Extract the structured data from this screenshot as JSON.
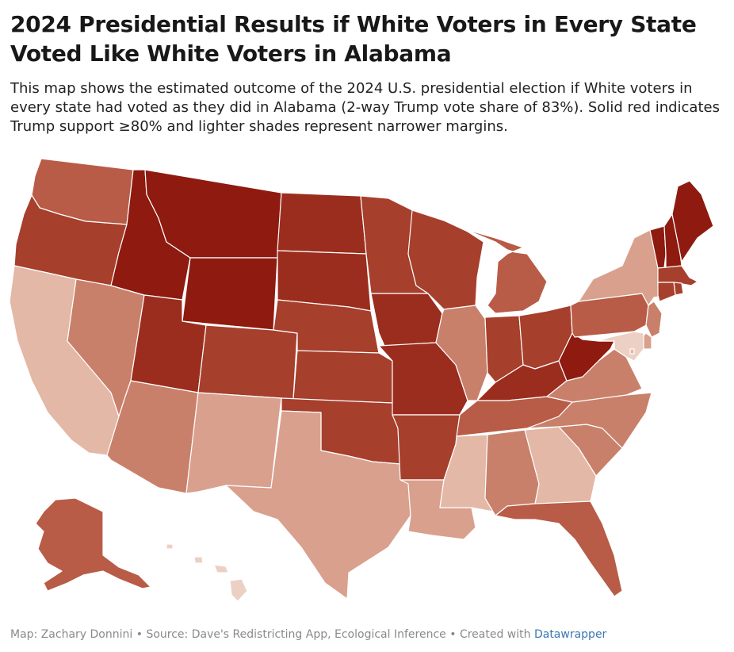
{
  "header": {
    "title_line1": "2024 Presidential Results if White Voters in Every State",
    "title_line2": "Voted Like White Voters in Alabama",
    "description": "This map shows the estimated outcome of the 2024 U.S. presidential election if White voters in every state had voted as they did in Alabama (2-way Trump vote share of 83%). Solid red indicates Trump support ≥80% and lighter shades represent narrower margins."
  },
  "footer": {
    "map_credit": "Map: Zachary Donnini",
    "separator": " • ",
    "source": "Source: Dave's Redistricting App, Ecological Inference",
    "created_with": "Created with ",
    "tool": "Datawrapper"
  },
  "colors": {
    "darkest": "#8e1a10",
    "dark": "#9b2d1e",
    "medium_dark": "#a63f2c",
    "medium": "#b85c47",
    "medium_light": "#c9806b",
    "light": "#d9a08e",
    "lighter": "#e3b8a7",
    "lightest": "#ecd0c3"
  },
  "map_data": {
    "states": [
      {
        "id": "WA",
        "shade": "medium"
      },
      {
        "id": "OR",
        "shade": "medium_dark"
      },
      {
        "id": "CA",
        "shade": "lighter"
      },
      {
        "id": "NV",
        "shade": "medium_light"
      },
      {
        "id": "ID",
        "shade": "darkest"
      },
      {
        "id": "MT",
        "shade": "darkest"
      },
      {
        "id": "WY",
        "shade": "darkest"
      },
      {
        "id": "UT",
        "shade": "dark"
      },
      {
        "id": "AZ",
        "shade": "medium_light"
      },
      {
        "id": "CO",
        "shade": "medium_dark"
      },
      {
        "id": "NM",
        "shade": "light"
      },
      {
        "id": "ND",
        "shade": "dark"
      },
      {
        "id": "SD",
        "shade": "dark"
      },
      {
        "id": "NE",
        "shade": "medium_dark"
      },
      {
        "id": "KS",
        "shade": "medium_dark"
      },
      {
        "id": "OK",
        "shade": "medium_dark"
      },
      {
        "id": "TX",
        "shade": "light"
      },
      {
        "id": "MN",
        "shade": "medium_dark"
      },
      {
        "id": "IA",
        "shade": "dark"
      },
      {
        "id": "MO",
        "shade": "dark"
      },
      {
        "id": "AR",
        "shade": "medium_dark"
      },
      {
        "id": "LA",
        "shade": "light"
      },
      {
        "id": "WI",
        "shade": "medium_dark"
      },
      {
        "id": "IL",
        "shade": "medium_light"
      },
      {
        "id": "MI",
        "shade": "medium"
      },
      {
        "id": "IN",
        "shade": "medium_dark"
      },
      {
        "id": "OH",
        "shade": "medium_dark"
      },
      {
        "id": "KY",
        "shade": "dark"
      },
      {
        "id": "TN",
        "shade": "medium"
      },
      {
        "id": "MS",
        "shade": "lighter"
      },
      {
        "id": "AL",
        "shade": "medium_light"
      },
      {
        "id": "GA",
        "shade": "lighter"
      },
      {
        "id": "FL",
        "shade": "medium"
      },
      {
        "id": "SC",
        "shade": "medium_light"
      },
      {
        "id": "NC",
        "shade": "medium_light"
      },
      {
        "id": "VA",
        "shade": "medium_light"
      },
      {
        "id": "WV",
        "shade": "darkest"
      },
      {
        "id": "PA",
        "shade": "medium"
      },
      {
        "id": "NY",
        "shade": "light"
      },
      {
        "id": "VT",
        "shade": "darkest"
      },
      {
        "id": "NH",
        "shade": "darkest"
      },
      {
        "id": "ME",
        "shade": "darkest"
      },
      {
        "id": "MA",
        "shade": "medium_dark"
      },
      {
        "id": "RI",
        "shade": "medium_dark"
      },
      {
        "id": "CT",
        "shade": "medium_dark"
      },
      {
        "id": "NJ",
        "shade": "medium_light"
      },
      {
        "id": "DE",
        "shade": "light"
      },
      {
        "id": "MD",
        "shade": "lightest"
      },
      {
        "id": "DC",
        "shade": "lighter"
      },
      {
        "id": "AK",
        "shade": "medium"
      },
      {
        "id": "HI",
        "shade": "lightest"
      }
    ]
  }
}
